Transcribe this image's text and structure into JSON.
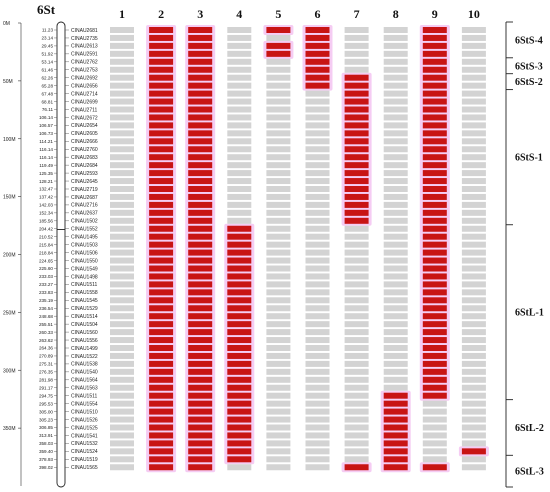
{
  "chart_data": {
    "type": "heatmap",
    "title": "6St",
    "columns": [
      "1",
      "2",
      "3",
      "4",
      "5",
      "6",
      "7",
      "8",
      "9",
      "10"
    ],
    "axis_ticks": [
      "0M",
      "50M",
      "100M",
      "150M",
      "200M",
      "250M",
      "300M",
      "350M"
    ],
    "axis_range": [
      0,
      400
    ],
    "colors": {
      "present": "#c81414",
      "absent": "#d3d3d3",
      "halo": "#f4c6f2"
    },
    "markers": [
      {
        "pos": 11.23,
        "name": "CINAU2681",
        "cells": "0110110010"
      },
      {
        "pos": 23.14,
        "name": "CINAU2735",
        "cells": "0110010010"
      },
      {
        "pos": 29.45,
        "name": "CINAU2613",
        "cells": "0110110010"
      },
      {
        "pos": 51.92,
        "name": "CINAU2591",
        "cells": "0110110010"
      },
      {
        "pos": 53.14,
        "name": "CINAU2762",
        "cells": "0110010010"
      },
      {
        "pos": 61.46,
        "name": "CINAU2753",
        "cells": "0110010010"
      },
      {
        "pos": 62.26,
        "name": "CINAU2692",
        "cells": "0110011010"
      },
      {
        "pos": 65.28,
        "name": "CINAU2656",
        "cells": "0110011010"
      },
      {
        "pos": 67.48,
        "name": "CINAU2714",
        "cells": "0110001010"
      },
      {
        "pos": 68.81,
        "name": "CINAU2699",
        "cells": "0110001010"
      },
      {
        "pos": 76.11,
        "name": "CINAU2711",
        "cells": "0110001010"
      },
      {
        "pos": 106.14,
        "name": "CINAU2672",
        "cells": "0110001010"
      },
      {
        "pos": 106.57,
        "name": "CINAU2654",
        "cells": "0110001010"
      },
      {
        "pos": 106.73,
        "name": "CINAU2605",
        "cells": "0110001010"
      },
      {
        "pos": 114.21,
        "name": "CINAU2666",
        "cells": "0110001010"
      },
      {
        "pos": 116.14,
        "name": "CINAU2760",
        "cells": "0110001010"
      },
      {
        "pos": 116.14,
        "name": "CINAU2683",
        "cells": "0110001010"
      },
      {
        "pos": 119.49,
        "name": "CINAU2684",
        "cells": "0110001010"
      },
      {
        "pos": 125.35,
        "name": "CINAU2593",
        "cells": "0110001010"
      },
      {
        "pos": 128.21,
        "name": "CINAU2645",
        "cells": "0110001010"
      },
      {
        "pos": 132.47,
        "name": "CINAU2719",
        "cells": "0110001010"
      },
      {
        "pos": 137.42,
        "name": "CINAU2687",
        "cells": "0110001010"
      },
      {
        "pos": 142.03,
        "name": "CINAU2716",
        "cells": "0110001010"
      },
      {
        "pos": 152.34,
        "name": "CINAU2637",
        "cells": "0110001010"
      },
      {
        "pos": 185.56,
        "name": "CINAU1502",
        "cells": "0110001010"
      },
      {
        "pos": 204.42,
        "name": "CINAU1552",
        "cells": "0111000010"
      },
      {
        "pos": 210.52,
        "name": "CINAU1495",
        "cells": "0111000010"
      },
      {
        "pos": 215.84,
        "name": "CINAU1503",
        "cells": "0111000010"
      },
      {
        "pos": 218.84,
        "name": "CINAU1506",
        "cells": "0111000010"
      },
      {
        "pos": 224.65,
        "name": "CINAU1550",
        "cells": "0111000010"
      },
      {
        "pos": 225.6,
        "name": "CINAU1549",
        "cells": "0111000010"
      },
      {
        "pos": 233.03,
        "name": "CINAU1498",
        "cells": "0111000010"
      },
      {
        "pos": 233.27,
        "name": "CINAU1511",
        "cells": "0111000010"
      },
      {
        "pos": 233.83,
        "name": "CINAU1558",
        "cells": "0111000010"
      },
      {
        "pos": 235.19,
        "name": "CINAU1545",
        "cells": "0111000010"
      },
      {
        "pos": 236.54,
        "name": "CINAU1529",
        "cells": "0111000010"
      },
      {
        "pos": 248.68,
        "name": "CINAU1514",
        "cells": "0111000010"
      },
      {
        "pos": 255.51,
        "name": "CINAU1504",
        "cells": "0111000010"
      },
      {
        "pos": 260.33,
        "name": "CINAU1560",
        "cells": "0111000010"
      },
      {
        "pos": 263.62,
        "name": "CINAU1556",
        "cells": "0111000010"
      },
      {
        "pos": 264.36,
        "name": "CINAU1499",
        "cells": "0111000010"
      },
      {
        "pos": 270.89,
        "name": "CINAU1522",
        "cells": "0111000010"
      },
      {
        "pos": 275.31,
        "name": "CINAU1538",
        "cells": "0111000010"
      },
      {
        "pos": 276.35,
        "name": "CINAU1540",
        "cells": "0111000010"
      },
      {
        "pos": 281.98,
        "name": "CINAU1564",
        "cells": "0111000010"
      },
      {
        "pos": 291.17,
        "name": "CINAU1563",
        "cells": "0111000010"
      },
      {
        "pos": 294.75,
        "name": "CINAU1511",
        "cells": "0111000110"
      },
      {
        "pos": 295.53,
        "name": "CINAU1554",
        "cells": "0111000100"
      },
      {
        "pos": 305.0,
        "name": "CINAU1510",
        "cells": "0111000100"
      },
      {
        "pos": 305.23,
        "name": "CINAU1526",
        "cells": "0111000100"
      },
      {
        "pos": 306.85,
        "name": "CINAU1525",
        "cells": "0111000100"
      },
      {
        "pos": 313.91,
        "name": "CINAU1541",
        "cells": "0111000100"
      },
      {
        "pos": 358.03,
        "name": "CINAU1532",
        "cells": "0111000100"
      },
      {
        "pos": 359.4,
        "name": "CINAU1524",
        "cells": "0111000101"
      },
      {
        "pos": 378.93,
        "name": "CINAU1519",
        "cells": "0111000100"
      },
      {
        "pos": 398.02,
        "name": "CINAU1565",
        "cells": "0110001110"
      }
    ],
    "regions": [
      {
        "label": "6StS-4",
        "from": 0,
        "to": 4
      },
      {
        "label": "6StS-3",
        "from": 4,
        "to": 6
      },
      {
        "label": "6StS-2",
        "from": 6,
        "to": 8
      },
      {
        "label": "6StS-1",
        "from": 8,
        "to": 25
      },
      {
        "label": "6StL-1",
        "from": 25,
        "to": 47
      },
      {
        "label": "6StL-2",
        "from": 47,
        "to": 54
      },
      {
        "label": "6StL-3",
        "from": 54,
        "to": 56
      }
    ]
  }
}
